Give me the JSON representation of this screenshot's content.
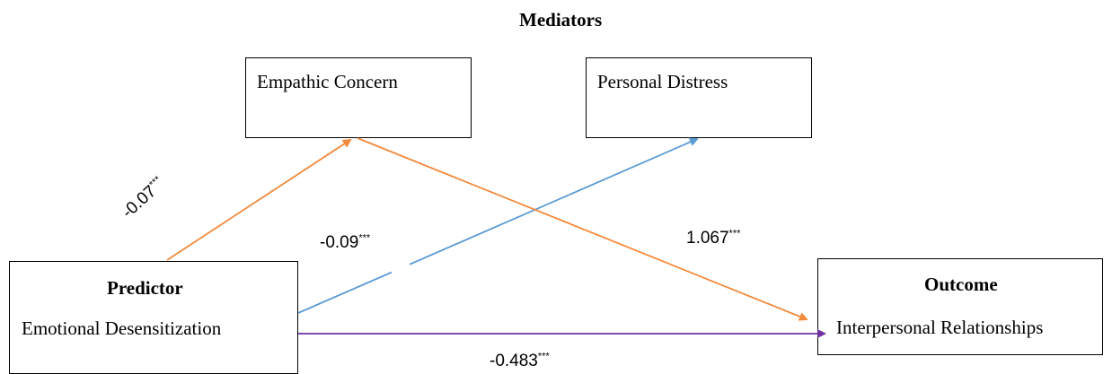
{
  "header": {
    "title": "Mediators"
  },
  "boxes": {
    "empathic": {
      "label": "Empathic Concern"
    },
    "distress": {
      "label": "Personal Distress"
    },
    "predictor": {
      "title": "Predictor",
      "label": "Emotional Desensitization"
    },
    "outcome": {
      "title": "Outcome",
      "label": "Interpersonal Relationships"
    }
  },
  "paths": {
    "pred_to_empathic": {
      "value": "-0.07",
      "sig": "***",
      "color": "#f28a3c"
    },
    "pred_to_distress": {
      "value": "-0.09",
      "sig": "***",
      "color": "#5b9bd5"
    },
    "empathic_to_outcome": {
      "value": "1.067",
      "sig": "***",
      "color": "#f28a3c"
    },
    "pred_to_outcome": {
      "value": "-0.483",
      "sig": "***",
      "color": "#7030a0"
    }
  }
}
